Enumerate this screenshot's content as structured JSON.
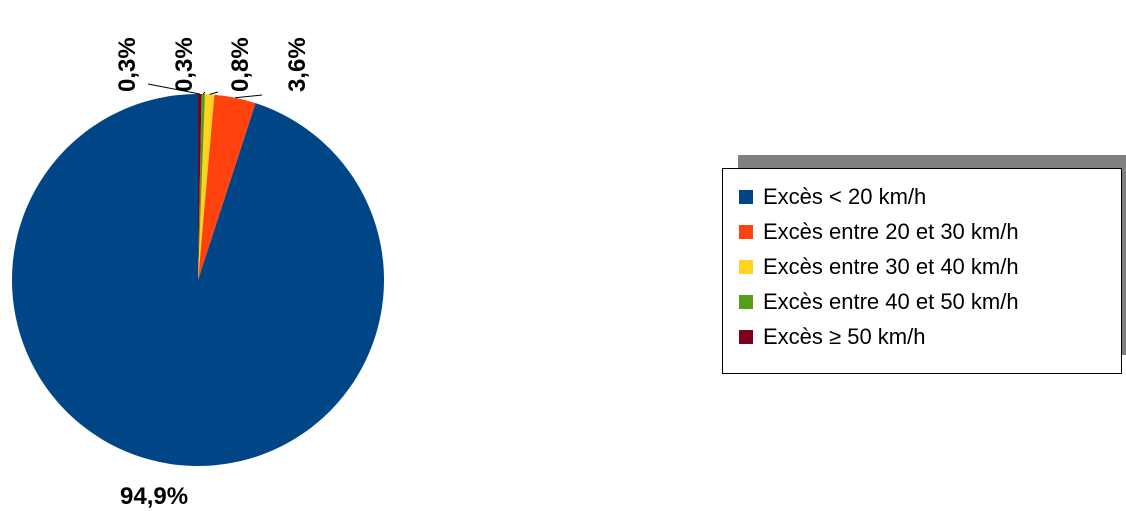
{
  "chart_data": {
    "type": "pie",
    "categories": [
      "Excès < 20 km/h",
      "Excès entre 20 et 30 km/h",
      "Excès entre 30 et 40 km/h",
      "Excès entre 40 et 50 km/h",
      "Excès ≥ 50 km/h"
    ],
    "values": [
      94.9,
      3.6,
      0.8,
      0.3,
      0.3
    ],
    "labels": [
      "94,9%",
      "3,6%",
      "0,8%",
      "0,3%",
      "0,3%"
    ],
    "colors": [
      "#004586",
      "#ff420e",
      "#ffd320",
      "#579d1c",
      "#7e0021"
    ],
    "legend_position": "right"
  }
}
